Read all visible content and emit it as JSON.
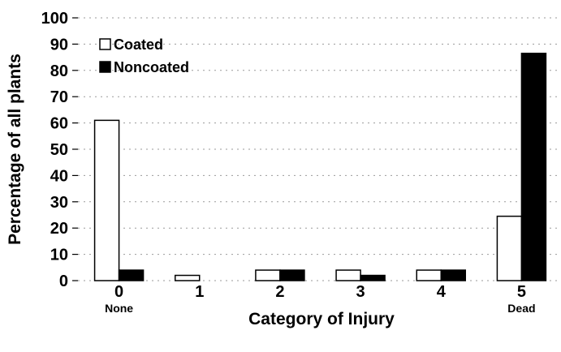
{
  "chart_data": {
    "type": "bar",
    "categories": [
      "0",
      "1",
      "2",
      "3",
      "4",
      "5"
    ],
    "category_sublabels": [
      "None",
      "",
      "",
      "",
      "",
      "Dead"
    ],
    "series": [
      {
        "name": "Coated",
        "values": [
          61,
          2,
          4,
          4,
          4,
          24.5
        ],
        "color": "#ffffff"
      },
      {
        "name": "Noncoated",
        "values": [
          4,
          0,
          4,
          2,
          4,
          86.5
        ],
        "color": "#000000"
      }
    ],
    "xlabel": "Category of Injury",
    "ylabel": "Percentage of all plants",
    "ylim": [
      0,
      100
    ],
    "yticks": [
      0,
      10,
      20,
      30,
      40,
      50,
      60,
      70,
      80,
      90,
      100
    ],
    "legend_position": "top-left",
    "grid": false
  }
}
